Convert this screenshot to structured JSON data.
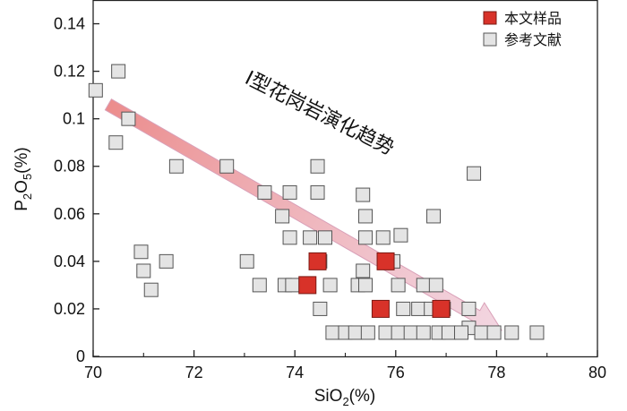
{
  "chart_data": {
    "type": "scatter",
    "title": "",
    "xlabel": "SiO2(%)",
    "ylabel": "P2O5(%)",
    "xlim": [
      70,
      80
    ],
    "ylim": [
      0,
      0.15
    ],
    "xticks": [
      70,
      72,
      74,
      76,
      78,
      80
    ],
    "xtick_labels": [
      "70",
      "72",
      "74",
      "76",
      "78",
      "80"
    ],
    "yticks": [
      0,
      0.02,
      0.04,
      0.06,
      0.08,
      0.1,
      0.12,
      0.14
    ],
    "ytick_labels": [
      "0",
      "0.02",
      "0.04",
      "0.06",
      "0.08",
      "0.1",
      "0.12",
      "0.14"
    ],
    "grid": false,
    "legend_position": "top-right",
    "annotation": {
      "text": "I型花岗岩演化趋势",
      "arrow_from": [
        70.3,
        0.106
      ],
      "arrow_to": [
        78.1,
        0.011
      ]
    },
    "series": [
      {
        "name": "参考文献",
        "color": "#e4e4e4",
        "stroke": "#555555",
        "points": [
          [
            70.05,
            0.112
          ],
          [
            70.5,
            0.12
          ],
          [
            70.7,
            0.1
          ],
          [
            70.45,
            0.09
          ],
          [
            71.65,
            0.08
          ],
          [
            72.65,
            0.08
          ],
          [
            74.45,
            0.08
          ],
          [
            77.55,
            0.077
          ],
          [
            73.4,
            0.069
          ],
          [
            73.9,
            0.069
          ],
          [
            74.45,
            0.069
          ],
          [
            75.35,
            0.068
          ],
          [
            73.75,
            0.059
          ],
          [
            75.4,
            0.059
          ],
          [
            76.75,
            0.059
          ],
          [
            73.9,
            0.05
          ],
          [
            74.3,
            0.05
          ],
          [
            74.6,
            0.05
          ],
          [
            75.4,
            0.05
          ],
          [
            75.75,
            0.05
          ],
          [
            76.1,
            0.051
          ],
          [
            70.95,
            0.044
          ],
          [
            71.45,
            0.04
          ],
          [
            73.05,
            0.04
          ],
          [
            74.5,
            0.04
          ],
          [
            75.95,
            0.04
          ],
          [
            71.0,
            0.036
          ],
          [
            75.35,
            0.036
          ],
          [
            71.15,
            0.028
          ],
          [
            73.3,
            0.03
          ],
          [
            73.8,
            0.03
          ],
          [
            73.95,
            0.03
          ],
          [
            74.7,
            0.03
          ],
          [
            75.25,
            0.03
          ],
          [
            75.4,
            0.03
          ],
          [
            76.05,
            0.03
          ],
          [
            76.55,
            0.03
          ],
          [
            76.8,
            0.03
          ],
          [
            74.5,
            0.02
          ],
          [
            76.15,
            0.02
          ],
          [
            76.45,
            0.02
          ],
          [
            76.7,
            0.02
          ],
          [
            76.95,
            0.02
          ],
          [
            77.45,
            0.02
          ],
          [
            77.45,
            0.012
          ],
          [
            74.75,
            0.01
          ],
          [
            75.0,
            0.01
          ],
          [
            75.2,
            0.01
          ],
          [
            75.45,
            0.01
          ],
          [
            75.8,
            0.01
          ],
          [
            76.05,
            0.01
          ],
          [
            76.3,
            0.01
          ],
          [
            76.55,
            0.01
          ],
          [
            76.85,
            0.01
          ],
          [
            77.05,
            0.01
          ],
          [
            77.3,
            0.01
          ],
          [
            77.7,
            0.01
          ],
          [
            77.95,
            0.01
          ],
          [
            78.3,
            0.01
          ],
          [
            78.8,
            0.01
          ]
        ]
      },
      {
        "name": "本文样品",
        "color": "#d83229",
        "stroke": "#7a1a14",
        "points": [
          [
            74.45,
            0.04
          ],
          [
            75.8,
            0.04
          ],
          [
            74.25,
            0.03
          ],
          [
            75.7,
            0.02
          ],
          [
            76.9,
            0.02
          ]
        ]
      }
    ]
  }
}
